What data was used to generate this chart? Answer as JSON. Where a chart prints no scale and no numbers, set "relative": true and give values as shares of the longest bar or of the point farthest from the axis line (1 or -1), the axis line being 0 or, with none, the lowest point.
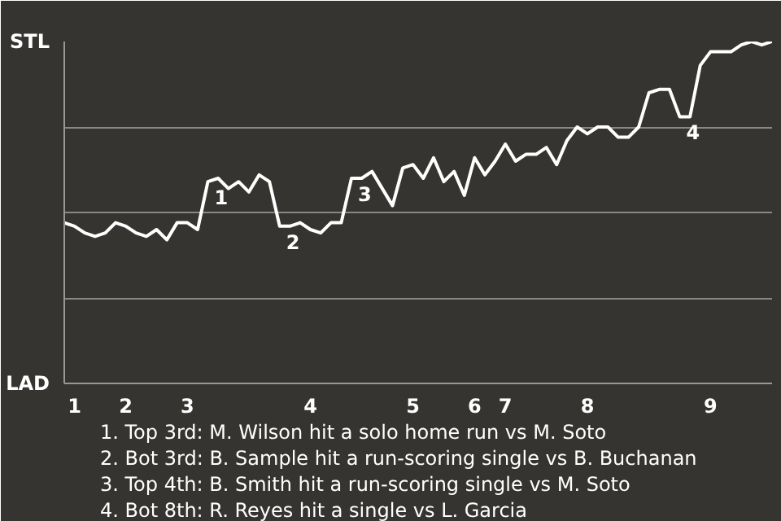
{
  "chart_data": {
    "type": "line",
    "relative": true,
    "grid": "y",
    "categories": [
      null,
      "1",
      null,
      null,
      null,
      null,
      "2",
      null,
      null,
      null,
      null,
      null,
      "3",
      null,
      null,
      null,
      null,
      null,
      null,
      null,
      null,
      null,
      null,
      null,
      "4",
      null,
      null,
      null,
      null,
      null,
      null,
      null,
      null,
      null,
      "5",
      null,
      null,
      null,
      null,
      null,
      "6",
      null,
      null,
      "7",
      null,
      null,
      null,
      null,
      null,
      null,
      null,
      "8",
      null,
      null,
      null,
      null,
      null,
      null,
      null,
      null,
      null,
      null,
      null,
      "9",
      null,
      null,
      null,
      null,
      null,
      null
    ],
    "series": [
      {
        "color": "#ffffff",
        "values": [
          0.47,
          0.46,
          0.44,
          0.43,
          0.44,
          0.47,
          0.46,
          0.44,
          0.43,
          0.45,
          0.42,
          0.47,
          0.47,
          0.45,
          0.59,
          0.6,
          0.57,
          0.59,
          0.56,
          0.61,
          0.59,
          0.46,
          0.46,
          0.47,
          0.45,
          0.44,
          0.47,
          0.47,
          0.6,
          0.6,
          0.62,
          0.57,
          0.52,
          0.63,
          0.64,
          0.6,
          0.66,
          0.59,
          0.62,
          0.55,
          0.66,
          0.61,
          0.65,
          0.7,
          0.65,
          0.67,
          0.67,
          0.69,
          0.64,
          0.71,
          0.75,
          0.73,
          0.75,
          0.75,
          0.72,
          0.72,
          0.75,
          0.85,
          0.86,
          0.86,
          0.78,
          0.78,
          0.93,
          0.97,
          0.97,
          0.97,
          0.99,
          1.0,
          0.99,
          1.0
        ]
      }
    ],
    "annotations": [
      "STL",
      "LAD",
      {
        "text": "1",
        "y": 0.59
      },
      {
        "text": "2",
        "y": 0.46
      },
      {
        "text": "3",
        "y": 0.6
      },
      {
        "text": "4",
        "y": 0.78
      },
      "1. Top 3rd: M. Wilson hit a solo home run vs M. Soto",
      "2. Bot 3rd: B. Sample hit a run-scoring single vs B. Buchanan",
      "3. Top 4th: B. Smith hit a run-scoring single vs M. Soto",
      "4. Bot 8th: R. Reyes hit a single vs L. Garcia"
    ]
  }
}
